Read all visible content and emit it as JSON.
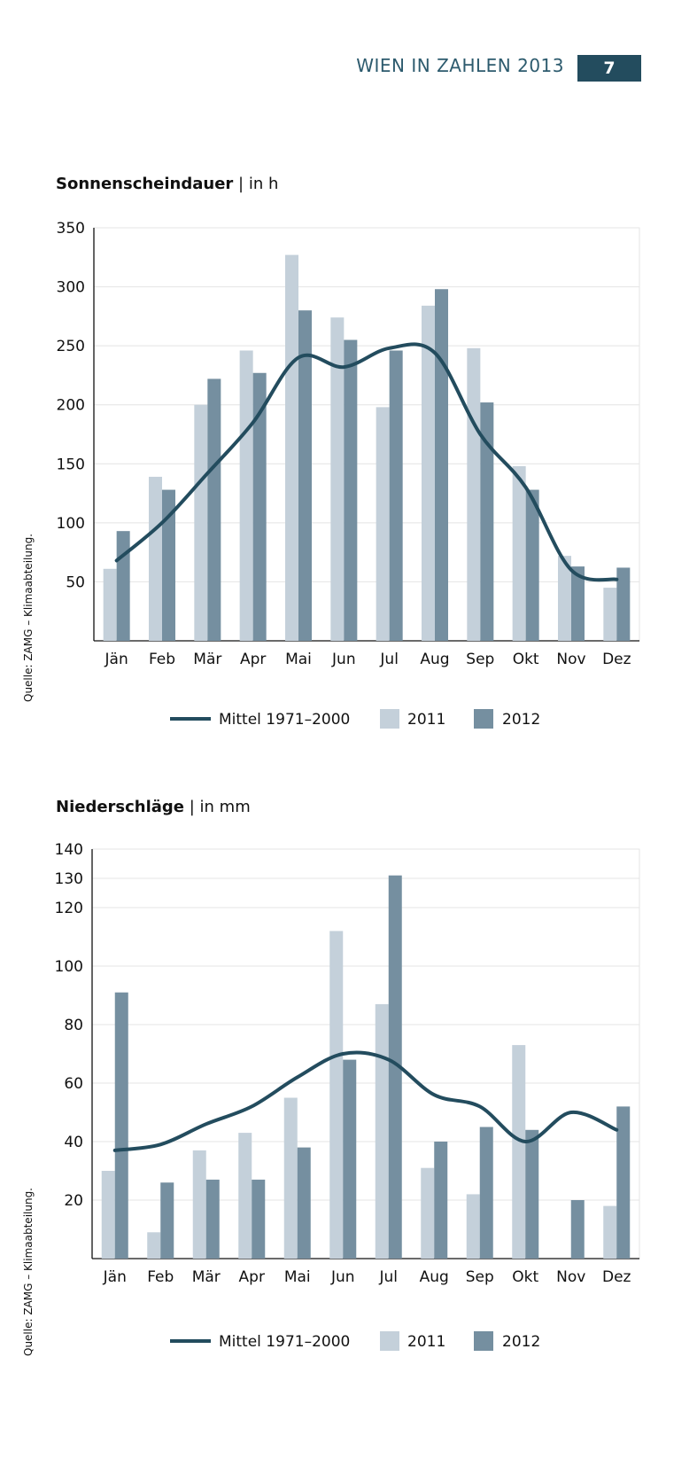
{
  "header": {
    "title": "WIEN IN ZAHLEN 2013",
    "page_number": "7"
  },
  "colors": {
    "line": "#234c5e",
    "bar2011": "#c4d0da",
    "bar2012": "#758fa0",
    "accent": "#234c5e"
  },
  "chart_data": [
    {
      "type": "bar",
      "title_bold": "Sonnenscheindauer",
      "title_rest": " | in h",
      "categories": [
        "Jän",
        "Feb",
        "Mär",
        "Apr",
        "Mai",
        "Jun",
        "Jul",
        "Aug",
        "Sep",
        "Okt",
        "Nov",
        "Dez"
      ],
      "ylim": [
        0,
        350
      ],
      "yticks": [
        50,
        100,
        150,
        200,
        250,
        300,
        350
      ],
      "series": [
        {
          "name": "2011",
          "kind": "bar",
          "values": [
            61,
            139,
            200,
            246,
            327,
            274,
            198,
            284,
            248,
            148,
            72,
            45
          ]
        },
        {
          "name": "2012",
          "kind": "bar",
          "values": [
            93,
            128,
            222,
            227,
            280,
            255,
            246,
            298,
            202,
            128,
            63,
            62
          ]
        },
        {
          "name": "Mittel 1971–2000",
          "kind": "line",
          "values": [
            68,
            100,
            142,
            185,
            240,
            232,
            248,
            244,
            175,
            130,
            60,
            52
          ]
        }
      ],
      "legend": [
        "Mittel 1971–2000",
        "2011",
        "2012"
      ],
      "source": "Quelle: ZAMG – Klimaabteilung."
    },
    {
      "type": "bar",
      "title_bold": "Niederschläge",
      "title_rest": " | in mm",
      "categories": [
        "Jän",
        "Feb",
        "Mär",
        "Apr",
        "Mai",
        "Jun",
        "Jul",
        "Aug",
        "Sep",
        "Okt",
        "Nov",
        "Dez"
      ],
      "ylim": [
        0,
        140
      ],
      "yticks": [
        20,
        40,
        60,
        80,
        100,
        120,
        130,
        140
      ],
      "series": [
        {
          "name": "2011",
          "kind": "bar",
          "values": [
            30,
            9,
            37,
            43,
            55,
            112,
            87,
            31,
            22,
            73,
            0,
            18
          ]
        },
        {
          "name": "2012",
          "kind": "bar",
          "values": [
            91,
            26,
            27,
            27,
            38,
            68,
            131,
            40,
            45,
            44,
            20,
            52
          ]
        },
        {
          "name": "Mittel 1971–2000",
          "kind": "line",
          "values": [
            37,
            39,
            46,
            52,
            62,
            70,
            68,
            56,
            52,
            40,
            50,
            44
          ]
        }
      ],
      "legend": [
        "Mittel 1971–2000",
        "2011",
        "2012"
      ],
      "source": "Quelle: ZAMG – Klimaabteilung."
    }
  ]
}
